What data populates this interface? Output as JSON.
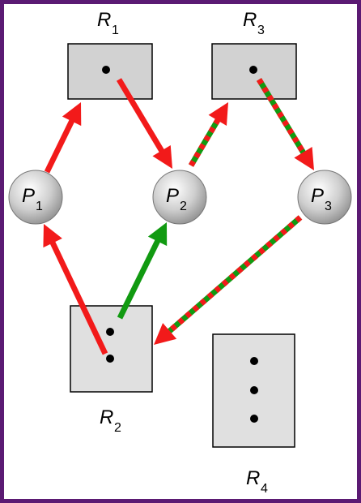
{
  "diagram": {
    "colors": {
      "frame": "#5b1a73",
      "resource_fill": "#d2d2d2",
      "resource_fill_light": "#e0e0e0",
      "request_edge": "#f21a1a",
      "assignment_edge": "#119a11",
      "cycle_edge_a": "#f21a1a",
      "cycle_edge_b": "#119a11"
    },
    "processes": [
      {
        "id": "P1",
        "letter": "P",
        "sub": "1"
      },
      {
        "id": "P2",
        "letter": "P",
        "sub": "2"
      },
      {
        "id": "P3",
        "letter": "P",
        "sub": "3"
      }
    ],
    "resources": [
      {
        "id": "R1",
        "letter": "R",
        "sub": "1",
        "instances": 1
      },
      {
        "id": "R3",
        "letter": "R",
        "sub": "3",
        "instances": 1
      },
      {
        "id": "R2",
        "letter": "R",
        "sub": "2",
        "instances": 2
      },
      {
        "id": "R4",
        "letter": "R",
        "sub": "4",
        "instances": 3
      }
    ],
    "edges": [
      {
        "from": "P1",
        "to": "R1",
        "style": "red"
      },
      {
        "from": "R1",
        "to": "P2",
        "style": "red"
      },
      {
        "from": "P2",
        "to": "R3",
        "style": "red-green"
      },
      {
        "from": "R3",
        "to": "P3",
        "style": "red-green"
      },
      {
        "from": "P3",
        "to": "R2",
        "style": "red-green"
      },
      {
        "from": "R2",
        "to": "P2",
        "style": "green"
      },
      {
        "from": "R2",
        "to": "P1",
        "style": "red"
      }
    ]
  }
}
